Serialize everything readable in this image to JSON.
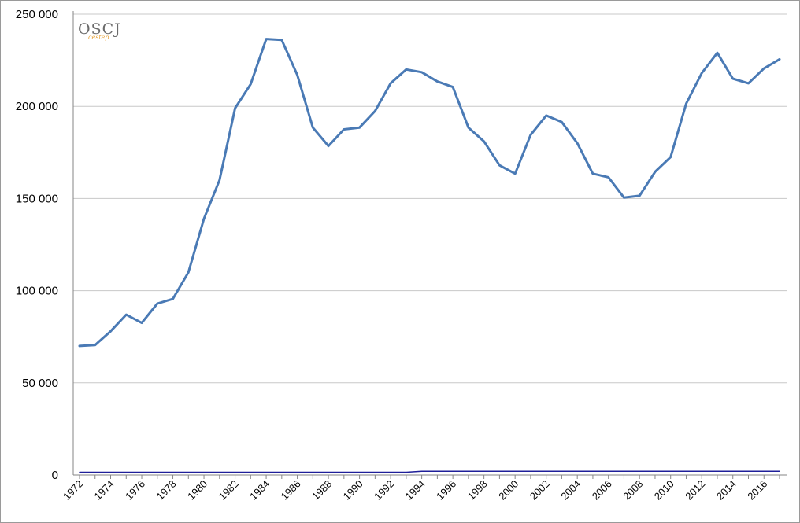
{
  "chart_data": {
    "type": "line",
    "title": "",
    "xlabel": "",
    "ylabel": "",
    "ylim": [
      0,
      250000
    ],
    "y_ticks": [
      0,
      50000,
      100000,
      150000,
      200000,
      250000
    ],
    "y_tick_labels": [
      "0",
      "50 000",
      "100 000",
      "150 000",
      "200 000",
      "250 000"
    ],
    "x_tick_labels": [
      "1972",
      "1974",
      "1976",
      "1978",
      "1980",
      "1982",
      "1984",
      "1986",
      "1988",
      "1990",
      "1992",
      "1994",
      "1996",
      "1998",
      "2000",
      "2002",
      "2004",
      "2006",
      "2008",
      "2010",
      "2012",
      "2014",
      "2016"
    ],
    "grid": true,
    "legend": "none",
    "x": [
      1972,
      1973,
      1974,
      1975,
      1976,
      1977,
      1978,
      1979,
      1980,
      1981,
      1982,
      1983,
      1984,
      1985,
      1986,
      1987,
      1988,
      1989,
      1990,
      1991,
      1992,
      1993,
      1994,
      1995,
      1996,
      1997,
      1998,
      1999,
      2000,
      2001,
      2002,
      2003,
      2004,
      2005,
      2006,
      2007,
      2008,
      2009,
      2010,
      2011,
      2012,
      2013,
      2014,
      2015,
      2016,
      2017
    ],
    "series": [
      {
        "color": "#4a7ab5",
        "values": [
          70000,
          70500,
          78000,
          87000,
          82500,
          93000,
          95500,
          110000,
          139000,
          160000,
          199000,
          212000,
          236500,
          236000,
          217000,
          188500,
          178500,
          187500,
          188500,
          197500,
          212500,
          220000,
          218500,
          213500,
          210500,
          188500,
          181000,
          168000,
          163500,
          184500,
          195000,
          191500,
          180000,
          163500,
          161500,
          150500,
          151500,
          164500,
          172500,
          201500,
          218000,
          229000,
          215000,
          212500,
          220500,
          225500
        ]
      },
      {
        "color": "#1f1f99",
        "values": [
          1500,
          1500,
          1500,
          1500,
          1500,
          1500,
          1500,
          1500,
          1500,
          1500,
          1500,
          1500,
          1500,
          1500,
          1500,
          1500,
          1500,
          1500,
          1500,
          1500,
          1500,
          1500,
          2000,
          2000,
          2000,
          2000,
          2000,
          2000,
          2000,
          2000,
          2000,
          2000,
          2000,
          2000,
          2000,
          2000,
          2000,
          2000,
          2000,
          2000,
          2000,
          2000,
          2000,
          2000,
          2000,
          2000
        ]
      }
    ]
  },
  "logo": {
    "text": "OSCJ",
    "subtext": "cestep"
  },
  "colors": {
    "gridline": "#c8c8c8",
    "axis": "#868686"
  }
}
